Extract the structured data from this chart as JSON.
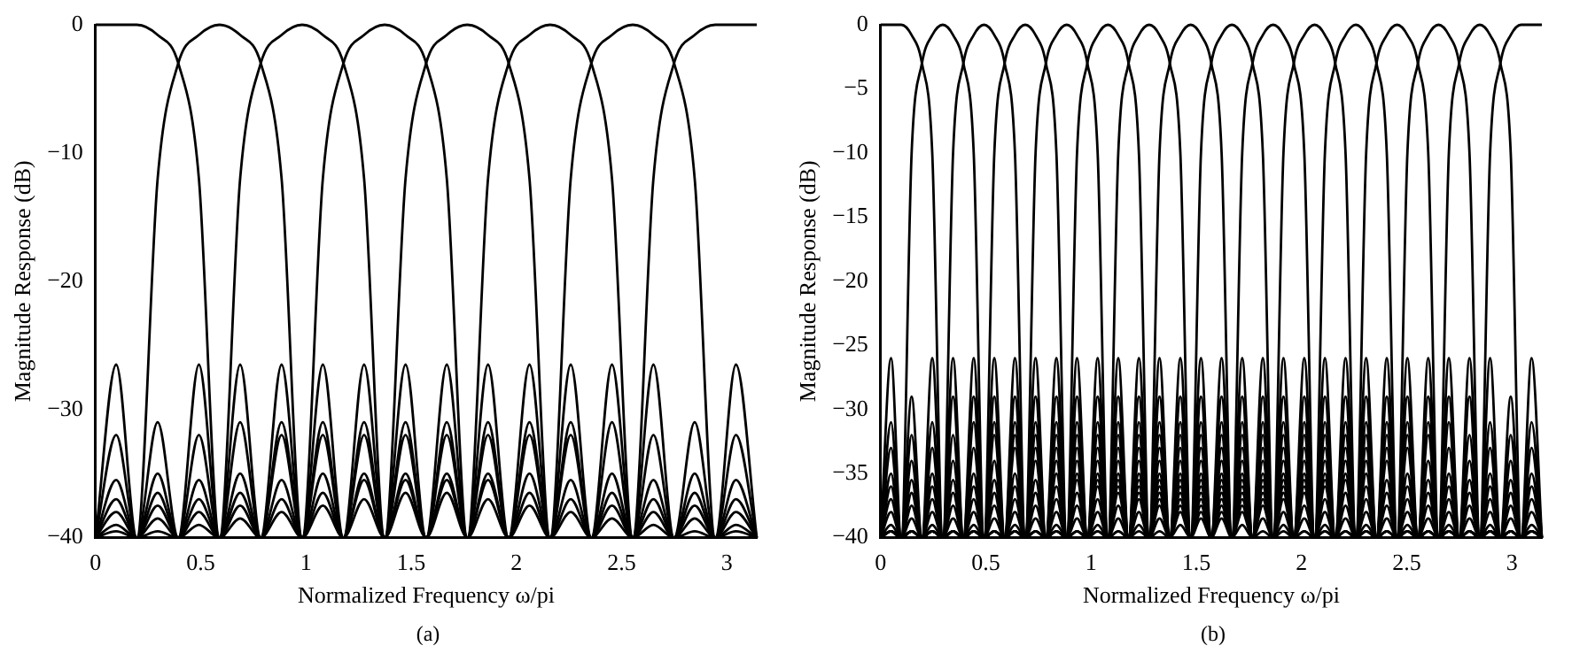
{
  "chart_data": [
    {
      "type": "line",
      "xlabel": "Normalized Frequency ω/pi",
      "ylabel": "Magnitude Response (dB)",
      "annotations": [
        "(a)"
      ],
      "xlim": [
        0,
        3.142
      ],
      "xticks": [
        0,
        0.5,
        1,
        1.5,
        2,
        2.5,
        3
      ],
      "ylim": [
        -40,
        0
      ],
      "yticks": [
        -40,
        -30,
        -20,
        -10,
        0
      ],
      "x": [
        0,
        0.098,
        0.196,
        0.295,
        0.393,
        0.491,
        0.589,
        0.687,
        0.785,
        0.884,
        0.982,
        1.08,
        1.178,
        1.276,
        1.374,
        1.473,
        1.571,
        1.669,
        1.767,
        1.865,
        1.963,
        2.062,
        2.16,
        2.258,
        2.356,
        2.454,
        2.553,
        2.651,
        2.749,
        2.847,
        2.945,
        3.043,
        3.142
      ],
      "series": [
        {
          "color": "#000000",
          "values": [
            0,
            0,
            0,
            -0.8,
            -3,
            -12,
            -40,
            -26.5,
            -40,
            -31,
            -40,
            -32,
            -40,
            -35,
            -40,
            -35.5,
            -40,
            -36.5,
            -40,
            -37,
            -40,
            -37.5,
            -40,
            -38,
            -40,
            -38.5,
            -40,
            -39,
            -40,
            -39.5,
            -40,
            -39.5,
            -40
          ]
        },
        {
          "color": "#000000",
          "values": [
            -40,
            -26.5,
            -40,
            -12,
            -3,
            -0.8,
            0,
            -0.8,
            -3,
            -12,
            -40,
            -26.5,
            -40,
            -31,
            -40,
            -32,
            -40,
            -35,
            -40,
            -35.5,
            -40,
            -36.5,
            -40,
            -37,
            -40,
            -37.5,
            -40,
            -38,
            -40,
            -38.5,
            -40,
            -39,
            -40
          ]
        },
        {
          "color": "#000000",
          "values": [
            -40,
            -32,
            -40,
            -31,
            -40,
            -26.5,
            -40,
            -12,
            -3,
            -0.8,
            0,
            -0.8,
            -3,
            -12,
            -40,
            -26.5,
            -40,
            -31,
            -40,
            -32,
            -40,
            -35,
            -40,
            -35.5,
            -40,
            -36.5,
            -40,
            -37,
            -40,
            -37.5,
            -40,
            -38,
            -40
          ]
        },
        {
          "color": "#000000",
          "values": [
            -40,
            -35.5,
            -40,
            -35,
            -40,
            -32,
            -40,
            -31,
            -40,
            -26.5,
            -40,
            -12,
            -3,
            -0.8,
            0,
            -0.8,
            -3,
            -12,
            -40,
            -26.5,
            -40,
            -31,
            -40,
            -32,
            -40,
            -35,
            -40,
            -35.5,
            -40,
            -36.5,
            -40,
            -37,
            -40
          ]
        },
        {
          "color": "#000000",
          "values": [
            -40,
            -37,
            -40,
            -36.5,
            -40,
            -35.5,
            -40,
            -35,
            -40,
            -32,
            -40,
            -31,
            -40,
            -26.5,
            -40,
            -12,
            -3,
            -0.8,
            0,
            -0.8,
            -3,
            -12,
            -40,
            -26.5,
            -40,
            -31,
            -40,
            -32,
            -40,
            -35,
            -40,
            -35.5,
            -40
          ]
        },
        {
          "color": "#000000",
          "values": [
            -40,
            -38,
            -40,
            -37.5,
            -40,
            -37,
            -40,
            -36.5,
            -40,
            -35.5,
            -40,
            -35,
            -40,
            -32,
            -40,
            -31,
            -40,
            -26.5,
            -40,
            -12,
            -3,
            -0.8,
            0,
            -0.8,
            -3,
            -12,
            -40,
            -26.5,
            -40,
            -31,
            -40,
            -32,
            -40
          ]
        },
        {
          "color": "#000000",
          "values": [
            -40,
            -39,
            -40,
            -38.5,
            -40,
            -38,
            -40,
            -37.5,
            -40,
            -37,
            -40,
            -36.5,
            -40,
            -35.5,
            -40,
            -35,
            -40,
            -32,
            -40,
            -31,
            -40,
            -26.5,
            -40,
            -12,
            -3,
            -0.8,
            0,
            -0.8,
            -3,
            -12,
            -40,
            -26.5,
            -40
          ]
        },
        {
          "color": "#000000",
          "values": [
            -40,
            -39.5,
            -40,
            -39.5,
            -40,
            -39,
            -40,
            -38.5,
            -40,
            -38,
            -40,
            -37.5,
            -40,
            -37,
            -40,
            -36.5,
            -40,
            -35.5,
            -40,
            -35,
            -40,
            -32,
            -40,
            -31,
            -40,
            -26.5,
            -40,
            -12,
            -3,
            -0.8,
            0,
            0,
            0
          ]
        }
      ]
    },
    {
      "type": "line",
      "xlabel": "Normalized Frequency ω/pi",
      "ylabel": "Magnitude Response (dB)",
      "annotations": [
        "(b)"
      ],
      "xlim": [
        0,
        3.142
      ],
      "xticks": [
        0,
        0.5,
        1,
        1.5,
        2,
        2.5,
        3
      ],
      "ylim": [
        -40,
        0
      ],
      "yticks": [
        -40,
        -35,
        -30,
        -25,
        -20,
        -15,
        -10,
        -5,
        0
      ],
      "x": [
        0,
        0.049,
        0.098,
        0.147,
        0.196,
        0.245,
        0.295,
        0.344,
        0.393,
        0.442,
        0.491,
        0.54,
        0.589,
        0.638,
        0.687,
        0.736,
        0.785,
        0.835,
        0.884,
        0.933,
        0.982,
        1.031,
        1.08,
        1.129,
        1.178,
        1.227,
        1.276,
        1.325,
        1.374,
        1.424,
        1.473,
        1.522,
        1.571,
        1.62,
        1.669,
        1.718,
        1.767,
        1.816,
        1.865,
        1.914,
        1.963,
        2.013,
        2.062,
        2.111,
        2.16,
        2.209,
        2.258,
        2.307,
        2.356,
        2.405,
        2.454,
        2.503,
        2.553,
        2.602,
        2.651,
        2.7,
        2.749,
        2.798,
        2.847,
        2.896,
        2.945,
        2.994,
        3.043,
        3.093,
        3.142
      ],
      "series": [
        {
          "color": "#000000",
          "values": [
            0,
            0,
            0,
            -0.8,
            -3,
            -10,
            -40,
            -26,
            -40,
            -29,
            -40,
            -31,
            -40,
            -32,
            -40,
            -33,
            -40,
            -34,
            -40,
            -35,
            -40,
            -35.5,
            -40,
            -36,
            -40,
            -36.5,
            -40,
            -37,
            -40,
            -37.5,
            -40,
            -38,
            -40,
            -38.5,
            -40,
            -39,
            -40,
            -39.5,
            -40,
            -39.5,
            -40,
            -39.5,
            -40,
            -39.5,
            -40,
            -39.5,
            -40,
            -39.5,
            -40,
            -39.5,
            -40,
            -39.5,
            -40,
            -39.5,
            -40,
            -39.5,
            -40,
            -39.5,
            -40,
            -39.5,
            -40,
            -39.5,
            -40,
            -39.5,
            -40
          ]
        },
        {
          "color": "#000000",
          "values": [
            -40,
            -26,
            -40,
            -10,
            -3,
            -0.8,
            0,
            -0.8,
            -3,
            -10,
            -40,
            -26,
            -40,
            -29,
            -40,
            -31,
            -40,
            -32,
            -40,
            -33,
            -40,
            -34,
            -40,
            -35,
            -40,
            -35.5,
            -40,
            -36,
            -40,
            -36.5,
            -40,
            -37,
            -40,
            -37.5,
            -40,
            -38,
            -40,
            -38.5,
            -40,
            -39,
            -40,
            -39.5,
            -40,
            -39.5,
            -40,
            -39.5,
            -40,
            -39.5,
            -40,
            -39.5,
            -40,
            -39.5,
            -40,
            -39.5,
            -40,
            -39.5,
            -40,
            -39.5,
            -40,
            -39.5,
            -40,
            -39.5,
            -40,
            -39.5,
            -40
          ]
        },
        {
          "color": "#000000",
          "values": [
            -40,
            -31,
            -40,
            -29,
            -40,
            -26,
            -40,
            -10,
            -3,
            -0.8,
            0,
            -0.8,
            -3,
            -10,
            -40,
            -26,
            -40,
            -29,
            -40,
            -31,
            -40,
            -32,
            -40,
            -33,
            -40,
            -34,
            -40,
            -35,
            -40,
            -35.5,
            -40,
            -36,
            -40,
            -36.5,
            -40,
            -37,
            -40,
            -37.5,
            -40,
            -38,
            -40,
            -38.5,
            -40,
            -39,
            -40,
            -39.5,
            -40,
            -39.5,
            -40,
            -39.5,
            -40,
            -39.5,
            -40,
            -39.5,
            -40,
            -39.5,
            -40,
            -39.5,
            -40,
            -39.5,
            -40,
            -39.5,
            -40,
            -39.5,
            -40
          ]
        },
        {
          "color": "#000000",
          "values": [
            -40,
            -33,
            -40,
            -32,
            -40,
            -31,
            -40,
            -29,
            -40,
            -26,
            -40,
            -10,
            -3,
            -0.8,
            0,
            -0.8,
            -3,
            -10,
            -40,
            -26,
            -40,
            -29,
            -40,
            -31,
            -40,
            -32,
            -40,
            -33,
            -40,
            -34,
            -40,
            -35,
            -40,
            -35.5,
            -40,
            -36,
            -40,
            -36.5,
            -40,
            -37,
            -40,
            -37.5,
            -40,
            -38,
            -40,
            -38.5,
            -40,
            -39,
            -40,
            -39.5,
            -40,
            -39.5,
            -40,
            -39.5,
            -40,
            -39.5,
            -40,
            -39.5,
            -40,
            -39.5,
            -40,
            -39.5,
            -40,
            -39.5,
            -40
          ]
        },
        {
          "color": "#000000",
          "values": [
            -40,
            -35,
            -40,
            -34,
            -40,
            -33,
            -40,
            -32,
            -40,
            -31,
            -40,
            -29,
            -40,
            -26,
            -40,
            -10,
            -3,
            -0.8,
            0,
            -0.8,
            -3,
            -10,
            -40,
            -26,
            -40,
            -29,
            -40,
            -31,
            -40,
            -32,
            -40,
            -33,
            -40,
            -34,
            -40,
            -35,
            -40,
            -35.5,
            -40,
            -36,
            -40,
            -36.5,
            -40,
            -37,
            -40,
            -37.5,
            -40,
            -38,
            -40,
            -38.5,
            -40,
            -39,
            -40,
            -39.5,
            -40,
            -39.5,
            -40,
            -39.5,
            -40,
            -39.5,
            -40,
            -39.5,
            -40,
            -39.5,
            -40
          ]
        },
        {
          "color": "#000000",
          "values": [
            -40,
            -36,
            -40,
            -35.5,
            -40,
            -35,
            -40,
            -34,
            -40,
            -33,
            -40,
            -32,
            -40,
            -31,
            -40,
            -29,
            -40,
            -26,
            -40,
            -10,
            -3,
            -0.8,
            0,
            -0.8,
            -3,
            -10,
            -40,
            -26,
            -40,
            -29,
            -40,
            -31,
            -40,
            -32,
            -40,
            -33,
            -40,
            -34,
            -40,
            -35,
            -40,
            -35.5,
            -40,
            -36,
            -40,
            -36.5,
            -40,
            -37,
            -40,
            -37.5,
            -40,
            -38,
            -40,
            -38.5,
            -40,
            -39,
            -40,
            -39.5,
            -40,
            -39.5,
            -40,
            -39.5,
            -40,
            -39.5,
            -40
          ]
        },
        {
          "color": "#000000",
          "values": [
            -40,
            -37,
            -40,
            -36.5,
            -40,
            -36,
            -40,
            -35.5,
            -40,
            -35,
            -40,
            -34,
            -40,
            -33,
            -40,
            -32,
            -40,
            -31,
            -40,
            -29,
            -40,
            -26,
            -40,
            -10,
            -3,
            -0.8,
            0,
            -0.8,
            -3,
            -10,
            -40,
            -26,
            -40,
            -29,
            -40,
            -31,
            -40,
            -32,
            -40,
            -33,
            -40,
            -34,
            -40,
            -35,
            -40,
            -35.5,
            -40,
            -36,
            -40,
            -36.5,
            -40,
            -37,
            -40,
            -37.5,
            -40,
            -38,
            -40,
            -38.5,
            -40,
            -39,
            -40,
            -39.5,
            -40,
            -39.5,
            -40
          ]
        },
        {
          "color": "#000000",
          "values": [
            -40,
            -38,
            -40,
            -37.5,
            -40,
            -37,
            -40,
            -36.5,
            -40,
            -36,
            -40,
            -35.5,
            -40,
            -35,
            -40,
            -34,
            -40,
            -33,
            -40,
            -32,
            -40,
            -31,
            -40,
            -29,
            -40,
            -26,
            -40,
            -10,
            -3,
            -0.8,
            0,
            -0.8,
            -3,
            -10,
            -40,
            -26,
            -40,
            -29,
            -40,
            -31,
            -40,
            -32,
            -40,
            -33,
            -40,
            -34,
            -40,
            -35,
            -40,
            -35.5,
            -40,
            -36,
            -40,
            -36.5,
            -40,
            -37,
            -40,
            -37.5,
            -40,
            -38,
            -40,
            -38.5,
            -40,
            -39,
            -40
          ]
        },
        {
          "color": "#000000",
          "values": [
            -40,
            -39,
            -40,
            -38.5,
            -40,
            -38,
            -40,
            -37.5,
            -40,
            -37,
            -40,
            -36.5,
            -40,
            -36,
            -40,
            -35.5,
            -40,
            -35,
            -40,
            -34,
            -40,
            -33,
            -40,
            -32,
            -40,
            -31,
            -40,
            -29,
            -40,
            -26,
            -40,
            -10,
            -3,
            -0.8,
            0,
            -0.8,
            -3,
            -10,
            -40,
            -26,
            -40,
            -29,
            -40,
            -31,
            -40,
            -32,
            -40,
            -33,
            -40,
            -34,
            -40,
            -35,
            -40,
            -35.5,
            -40,
            -36,
            -40,
            -36.5,
            -40,
            -37,
            -40,
            -37.5,
            -40,
            -38,
            -40
          ]
        },
        {
          "color": "#000000",
          "values": [
            -40,
            -39.5,
            -40,
            -39.5,
            -40,
            -39,
            -40,
            -38.5,
            -40,
            -38,
            -40,
            -37.5,
            -40,
            -37,
            -40,
            -36.5,
            -40,
            -36,
            -40,
            -35.5,
            -40,
            -35,
            -40,
            -34,
            -40,
            -33,
            -40,
            -32,
            -40,
            -31,
            -40,
            -29,
            -40,
            -26,
            -40,
            -10,
            -3,
            -0.8,
            0,
            -0.8,
            -3,
            -10,
            -40,
            -26,
            -40,
            -29,
            -40,
            -31,
            -40,
            -32,
            -40,
            -33,
            -40,
            -34,
            -40,
            -35,
            -40,
            -35.5,
            -40,
            -36,
            -40,
            -36.5,
            -40,
            -37,
            -40
          ]
        },
        {
          "color": "#000000",
          "values": [
            -40,
            -39.5,
            -40,
            -39.5,
            -40,
            -39.5,
            -40,
            -39.5,
            -40,
            -39,
            -40,
            -38.5,
            -40,
            -38,
            -40,
            -37.5,
            -40,
            -37,
            -40,
            -36.5,
            -40,
            -36,
            -40,
            -35.5,
            -40,
            -35,
            -40,
            -34,
            -40,
            -33,
            -40,
            -32,
            -40,
            -31,
            -40,
            -29,
            -40,
            -26,
            -40,
            -10,
            -3,
            -0.8,
            0,
            -0.8,
            -3,
            -10,
            -40,
            -26,
            -40,
            -29,
            -40,
            -31,
            -40,
            -32,
            -40,
            -33,
            -40,
            -34,
            -40,
            -35,
            -40,
            -35.5,
            -40,
            -36,
            -40
          ]
        },
        {
          "color": "#000000",
          "values": [
            -40,
            -39.5,
            -40,
            -39.5,
            -40,
            -39.5,
            -40,
            -39.5,
            -40,
            -39.5,
            -40,
            -39.5,
            -40,
            -39,
            -40,
            -38.5,
            -40,
            -38,
            -40,
            -37.5,
            -40,
            -37,
            -40,
            -36.5,
            -40,
            -36,
            -40,
            -35.5,
            -40,
            -35,
            -40,
            -34,
            -40,
            -33,
            -40,
            -32,
            -40,
            -31,
            -40,
            -29,
            -40,
            -26,
            -40,
            -10,
            -3,
            -0.8,
            0,
            -0.8,
            -3,
            -10,
            -40,
            -26,
            -40,
            -29,
            -40,
            -31,
            -40,
            -32,
            -40,
            -33,
            -40,
            -34,
            -40,
            -35,
            -40
          ]
        },
        {
          "color": "#000000",
          "values": [
            -40,
            -39.5,
            -40,
            -39.5,
            -40,
            -39.5,
            -40,
            -39.5,
            -40,
            -39.5,
            -40,
            -39.5,
            -40,
            -39.5,
            -40,
            -39.5,
            -40,
            -39,
            -40,
            -38.5,
            -40,
            -38,
            -40,
            -37.5,
            -40,
            -37,
            -40,
            -36.5,
            -40,
            -36,
            -40,
            -35.5,
            -40,
            -35,
            -40,
            -34,
            -40,
            -33,
            -40,
            -32,
            -40,
            -31,
            -40,
            -29,
            -40,
            -26,
            -40,
            -10,
            -3,
            -0.8,
            0,
            -0.8,
            -3,
            -10,
            -40,
            -26,
            -40,
            -29,
            -40,
            -31,
            -40,
            -32,
            -40,
            -33,
            -40
          ]
        },
        {
          "color": "#000000",
          "values": [
            -40,
            -39.5,
            -40,
            -39.5,
            -40,
            -39.5,
            -40,
            -39.5,
            -40,
            -39.5,
            -40,
            -39.5,
            -40,
            -39.5,
            -40,
            -39.5,
            -40,
            -39.5,
            -40,
            -39.5,
            -40,
            -39,
            -40,
            -38.5,
            -40,
            -38,
            -40,
            -37.5,
            -40,
            -37,
            -40,
            -36.5,
            -40,
            -36,
            -40,
            -35.5,
            -40,
            -35,
            -40,
            -34,
            -40,
            -33,
            -40,
            -32,
            -40,
            -31,
            -40,
            -29,
            -40,
            -26,
            -40,
            -10,
            -3,
            -0.8,
            0,
            -0.8,
            -3,
            -10,
            -40,
            -26,
            -40,
            -29,
            -40,
            -31,
            -40
          ]
        },
        {
          "color": "#000000",
          "values": [
            -40,
            -39.5,
            -40,
            -39.5,
            -40,
            -39.5,
            -40,
            -39.5,
            -40,
            -39.5,
            -40,
            -39.5,
            -40,
            -39.5,
            -40,
            -39.5,
            -40,
            -39.5,
            -40,
            -39.5,
            -40,
            -39.5,
            -40,
            -39.5,
            -40,
            -39,
            -40,
            -38.5,
            -40,
            -38,
            -40,
            -37.5,
            -40,
            -37,
            -40,
            -36.5,
            -40,
            -36,
            -40,
            -35.5,
            -40,
            -35,
            -40,
            -34,
            -40,
            -33,
            -40,
            -32,
            -40,
            -31,
            -40,
            -29,
            -40,
            -26,
            -40,
            -10,
            -3,
            -0.8,
            0,
            -0.8,
            -3,
            -10,
            -40,
            -26,
            -40
          ]
        },
        {
          "color": "#000000",
          "values": [
            -40,
            -39.5,
            -40,
            -39.5,
            -40,
            -39.5,
            -40,
            -39.5,
            -40,
            -39.5,
            -40,
            -39.5,
            -40,
            -39.5,
            -40,
            -39.5,
            -40,
            -39.5,
            -40,
            -39.5,
            -40,
            -39.5,
            -40,
            -39.5,
            -40,
            -39.5,
            -40,
            -39.5,
            -40,
            -39,
            -40,
            -38.5,
            -40,
            -38,
            -40,
            -37.5,
            -40,
            -37,
            -40,
            -36.5,
            -40,
            -36,
            -40,
            -35.5,
            -40,
            -35,
            -40,
            -34,
            -40,
            -33,
            -40,
            -32,
            -40,
            -31,
            -40,
            -29,
            -40,
            -26,
            -40,
            -10,
            -3,
            -0.8,
            0,
            0,
            0
          ]
        }
      ]
    }
  ]
}
